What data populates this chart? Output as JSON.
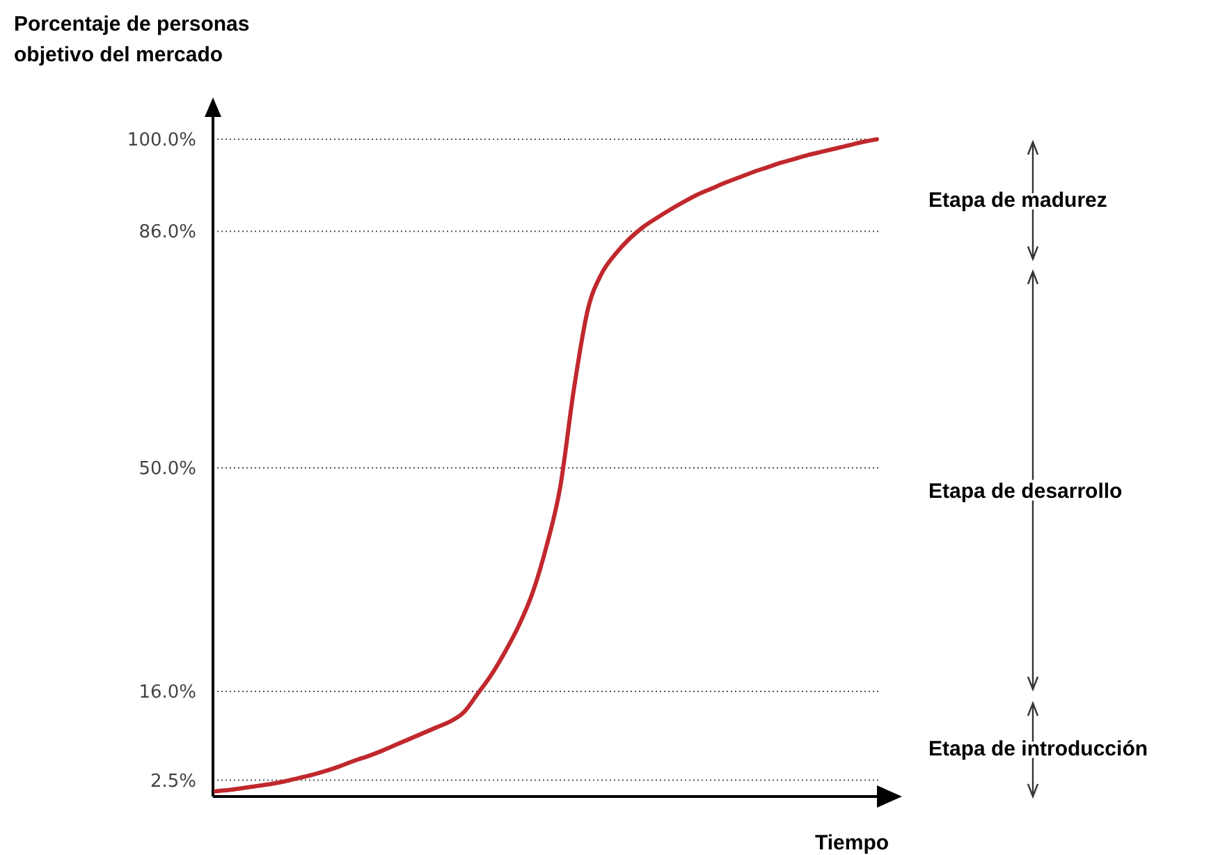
{
  "chart_data": {
    "type": "line",
    "xlabel": "Tiempo",
    "ylabel": "Porcentaje de personas\nobjetivo del mercado",
    "categories": [
      null,
      null,
      null,
      null,
      null,
      null,
      null,
      null,
      null,
      null,
      null,
      null,
      null,
      null,
      null,
      null,
      null,
      null,
      null,
      null,
      null,
      null,
      null,
      null,
      null,
      null,
      null,
      null,
      null,
      null,
      null,
      null,
      null,
      null,
      null,
      null,
      null,
      null,
      null,
      null,
      null,
      null,
      null,
      null,
      null,
      null,
      null,
      null,
      null
    ],
    "series": [
      {
        "color": "#c0282d",
        "values": [
          0.8,
          1.0,
          1.3,
          1.6,
          1.9,
          2.3,
          2.8,
          3.3,
          3.9,
          4.6,
          5.4,
          6.1,
          6.9,
          7.8,
          8.7,
          9.6,
          10.5,
          11.4,
          12.8,
          15.6,
          18.5,
          22.0,
          26.0,
          31.0,
          38.0,
          47.0,
          62.0,
          74.0,
          79.5,
          82.5,
          84.8,
          86.6,
          88.0,
          89.3,
          90.5,
          91.6,
          92.5,
          93.4,
          94.2,
          95.0,
          95.7,
          96.4,
          97.0,
          97.6,
          98.1,
          98.6,
          99.1,
          99.6,
          100
        ]
      }
    ],
    "ylim": [
      0,
      100
    ],
    "yticks": [
      {
        "value": 2.5,
        "label": "2.5%"
      },
      {
        "value": 16,
        "label": "16.0%"
      },
      {
        "value": 50,
        "label": "50.0%"
      },
      {
        "value": 86,
        "label": "86.0%"
      },
      {
        "value": 100,
        "label": "100.0%"
      }
    ],
    "grid": "y",
    "line_style": "solid",
    "tick_labels": "y",
    "annotations": [
      "Etapa de madurez",
      "Etapa de desarrollo",
      "Etapa de introducción"
    ]
  }
}
